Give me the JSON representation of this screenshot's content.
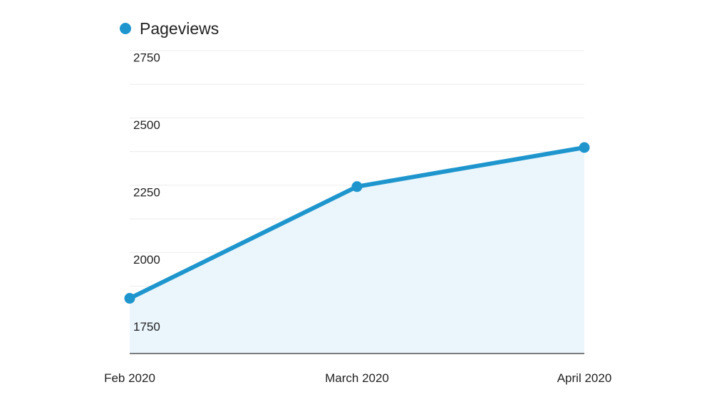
{
  "chart_data": {
    "type": "area",
    "title": "",
    "xlabel": "",
    "ylabel": "",
    "categories": [
      "Feb 2020",
      "March 2020",
      "April 2020"
    ],
    "series": [
      {
        "name": "Pageviews",
        "values": [
          1855,
          2270,
          2415
        ],
        "color": "#1e96cd",
        "fill_color": "#eaf5fc"
      }
    ],
    "y_ticks": [
      1750,
      2000,
      2250,
      2500,
      2750
    ],
    "ylim": [
      1650,
      2775
    ],
    "grid": true,
    "legend": "top-left"
  }
}
